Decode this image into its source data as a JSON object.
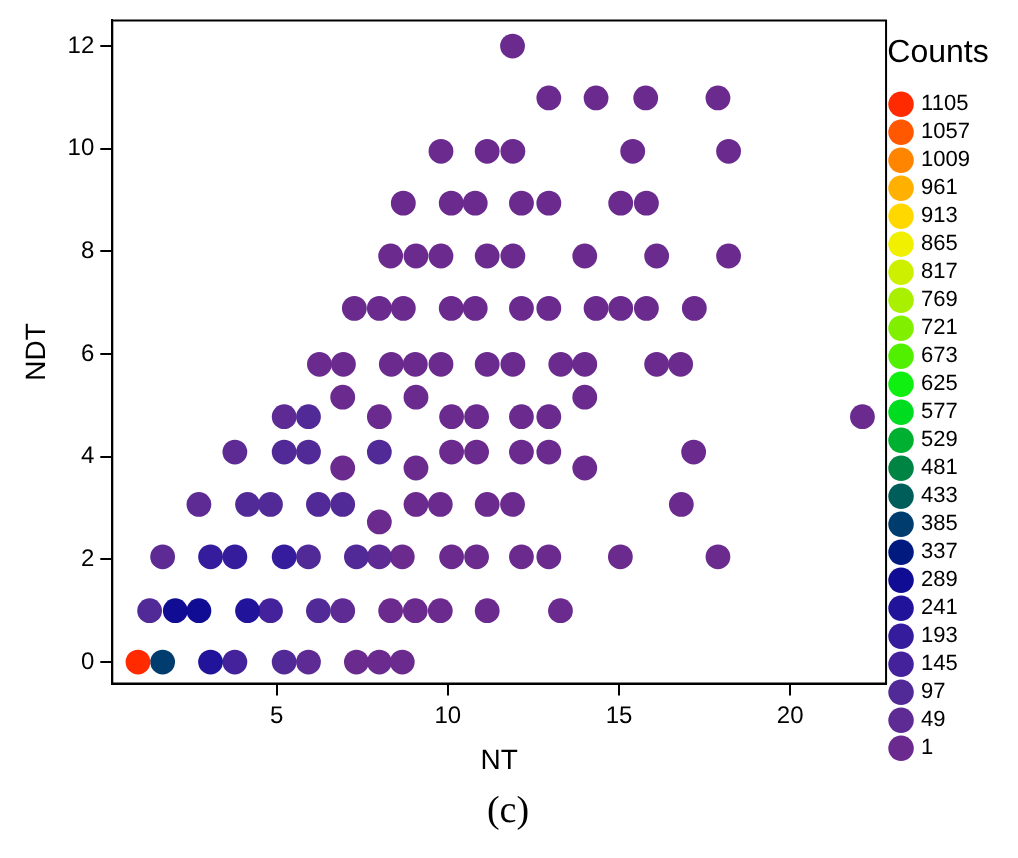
{
  "chart_data": {
    "type": "scatter",
    "xlabel": "NT",
    "ylabel": "NDT",
    "legend_title": "Counts",
    "annotations": [
      "(c)"
    ],
    "xlim": [
      0.2,
      22.8
    ],
    "xticks": [
      5,
      10,
      15,
      20
    ],
    "ylim": [
      -0.42,
      12.5
    ],
    "yticks": [
      0,
      2,
      4,
      6,
      8,
      10,
      12
    ],
    "grid": false,
    "legend": "right",
    "marker": "circle",
    "series": [
      {
        "name": "1105",
        "color": "#ff2a00",
        "x": [
          0.95
        ],
        "values": [
          0
        ]
      },
      {
        "name": "1057",
        "color": "#ff5800"
      },
      {
        "name": "1009",
        "color": "#ff8400"
      },
      {
        "name": "961",
        "color": "#ffb000"
      },
      {
        "name": "913",
        "color": "#ffd800"
      },
      {
        "name": "865",
        "color": "#f0f000"
      },
      {
        "name": "817",
        "color": "#ccf000"
      },
      {
        "name": "769",
        "color": "#a8f000"
      },
      {
        "name": "721",
        "color": "#80f000"
      },
      {
        "name": "673",
        "color": "#50f000"
      },
      {
        "name": "625",
        "color": "#10f010"
      },
      {
        "name": "577",
        "color": "#00dc20"
      },
      {
        "name": "529",
        "color": "#00b030"
      },
      {
        "name": "481",
        "color": "#008444"
      },
      {
        "name": "433",
        "color": "#005e5a"
      },
      {
        "name": "385",
        "color": "#003c6e",
        "x": [
          1.67
        ],
        "values": [
          0
        ]
      },
      {
        "name": "337",
        "color": "#001a80"
      },
      {
        "name": "289",
        "color": "#100c94",
        "x": [
          2.04,
          2.73
        ],
        "values": [
          1,
          1
        ]
      },
      {
        "name": "241",
        "color": "#22149a",
        "x": [
          3.07,
          4.15
        ],
        "values": [
          0,
          1
        ]
      },
      {
        "name": "193",
        "color": "#341c9c",
        "x": [
          3.07,
          3.78,
          5.22
        ],
        "values": [
          2.05,
          2.05,
          2.05
        ]
      },
      {
        "name": "145",
        "color": "#44229c",
        "x": [
          3.78,
          4.82
        ],
        "values": [
          0,
          1
        ]
      },
      {
        "name": "97",
        "color": "#522a98",
        "x": [
          5.22,
          1.29,
          6.22,
          5.93,
          7.33,
          4.15,
          4.82,
          6.22,
          6.93,
          5.22,
          5.93,
          8.0,
          5.93
        ],
        "values": [
          0,
          1,
          1,
          2.05,
          2.05,
          3.07,
          3.07,
          3.07,
          3.07,
          4.09,
          4.09,
          4.09,
          4.78
        ]
      },
      {
        "name": "49",
        "color": "#5e2a94",
        "x": [
          5.93,
          6.93,
          1.67,
          8.0,
          2.73,
          3.78,
          5.22
        ],
        "values": [
          0,
          1,
          2.05,
          2.05,
          3.07,
          4.09,
          4.78
        ]
      },
      {
        "name": "1",
        "color": "#6a2a8e",
        "x": [
          7.33,
          8.0,
          8.67,
          8.33,
          9.05,
          9.78,
          11.15,
          13.29,
          8.67,
          10.11,
          10.84,
          12.15,
          12.95,
          15.04,
          17.89,
          8.0,
          9.07,
          9.78,
          11.15,
          11.89,
          16.82,
          6.93,
          9.07,
          14.0,
          10.11,
          10.84,
          12.15,
          12.95,
          17.18,
          8.0,
          10.11,
          10.84,
          12.15,
          12.95,
          22.11,
          6.93,
          9.07,
          14.0,
          6.25,
          6.95,
          8.35,
          9.05,
          9.8,
          11.15,
          11.9,
          13.3,
          14.0,
          16.1,
          16.8,
          7.27,
          8.0,
          8.7,
          10.1,
          10.8,
          12.15,
          12.95,
          14.33,
          15.05,
          15.8,
          17.2,
          8.33,
          9.07,
          9.8,
          11.15,
          11.9,
          14.0,
          16.1,
          18.2,
          8.7,
          10.1,
          10.8,
          12.15,
          12.95,
          15.05,
          15.8,
          9.8,
          11.15,
          11.9,
          15.4,
          18.2,
          12.95,
          14.33,
          15.78,
          17.89,
          11.89
        ],
        "values": [
          0,
          0,
          0,
          1,
          1,
          1,
          1,
          1,
          2.05,
          2.05,
          2.05,
          2.05,
          2.05,
          2.05,
          2.05,
          2.73,
          3.07,
          3.07,
          3.07,
          3.07,
          3.07,
          3.78,
          3.78,
          3.78,
          4.09,
          4.09,
          4.09,
          4.09,
          4.09,
          4.78,
          4.78,
          4.78,
          4.78,
          4.78,
          4.78,
          5.16,
          5.16,
          5.16,
          5.8,
          5.8,
          5.8,
          5.8,
          5.8,
          5.8,
          5.8,
          5.8,
          5.8,
          5.8,
          5.8,
          6.89,
          6.89,
          6.89,
          6.89,
          6.89,
          6.89,
          6.89,
          6.89,
          6.89,
          6.89,
          6.89,
          7.91,
          7.91,
          7.91,
          7.91,
          7.91,
          7.91,
          7.91,
          7.91,
          8.94,
          8.94,
          8.94,
          8.94,
          8.94,
          8.94,
          8.94,
          9.95,
          9.95,
          9.95,
          9.95,
          9.95,
          10.99,
          10.99,
          10.99,
          10.99,
          12.0
        ]
      }
    ]
  }
}
